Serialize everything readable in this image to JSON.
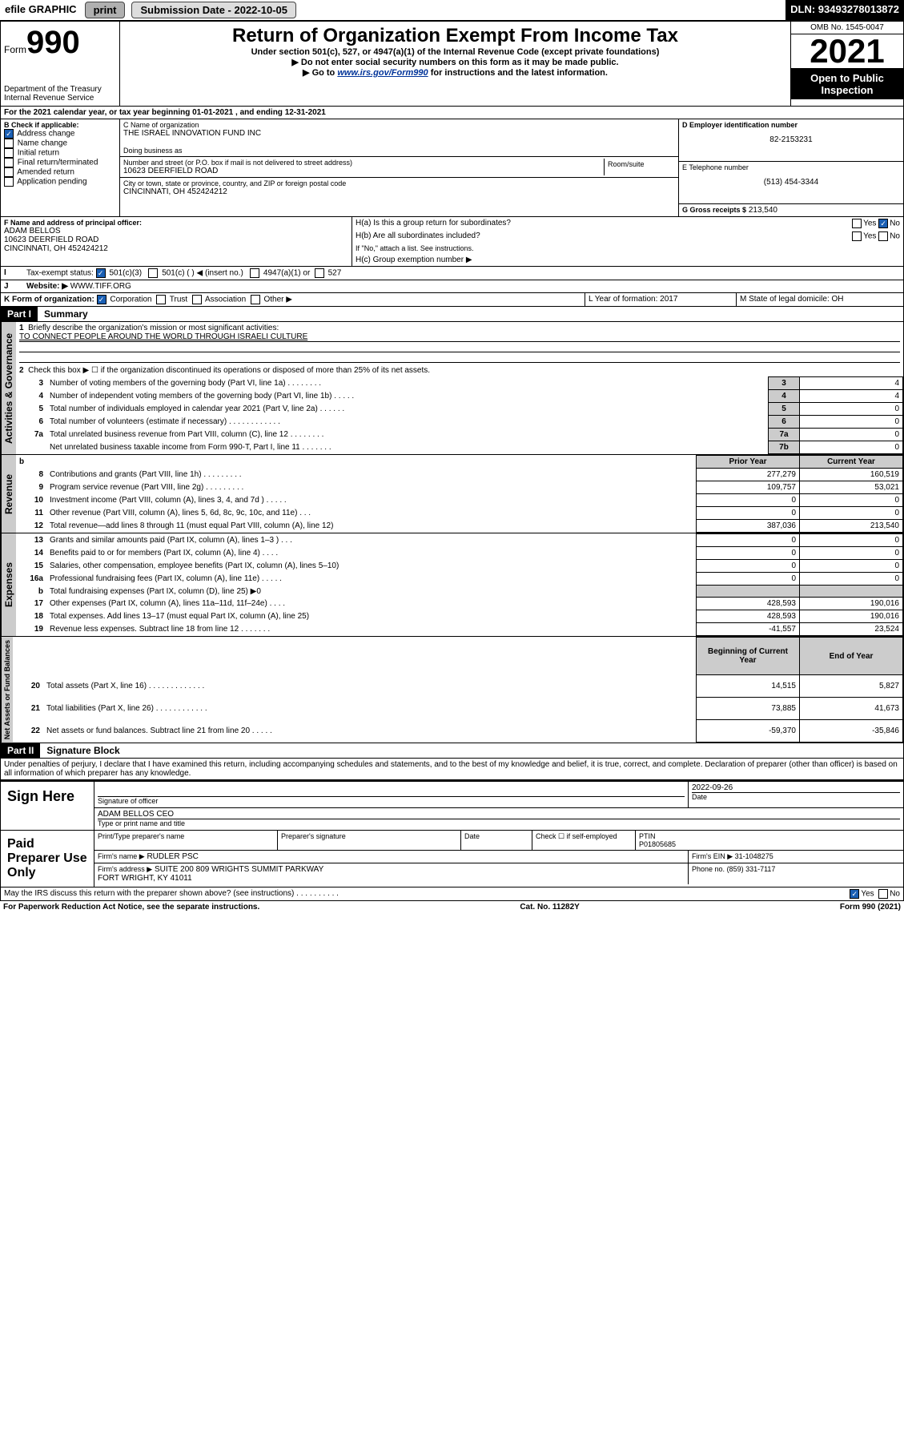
{
  "topbar": {
    "efile": "efile GRAPHIC",
    "print": "print",
    "submission_label": "Submission Date - 2022-10-05",
    "dln_label": "DLN: 93493278013872"
  },
  "header": {
    "form_prefix": "Form",
    "form_no": "990",
    "dept": "Department of the Treasury",
    "irs": "Internal Revenue Service",
    "title": "Return of Organization Exempt From Income Tax",
    "sub1": "Under section 501(c), 527, or 4947(a)(1) of the Internal Revenue Code (except private foundations)",
    "sub2": "▶ Do not enter social security numbers on this form as it may be made public.",
    "sub3_pre": "▶ Go to ",
    "sub3_link": "www.irs.gov/Form990",
    "sub3_post": " for instructions and the latest information.",
    "omb": "OMB No. 1545-0047",
    "year": "2021",
    "open": "Open to Public Inspection"
  },
  "lineA": "For the 2021 calendar year, or tax year beginning 01-01-2021     , and ending 12-31-2021",
  "boxB": {
    "label": "B Check if applicable:",
    "opts": [
      "Address change",
      "Name change",
      "Initial return",
      "Final return/terminated",
      "Amended return",
      "Application pending"
    ],
    "checked": [
      true,
      false,
      false,
      false,
      false,
      false
    ]
  },
  "boxC": {
    "label": "C Name of organization",
    "name": "THE ISRAEL INNOVATION FUND INC",
    "dba_label": "Doing business as",
    "street_label": "Number and street (or P.O. box if mail is not delivered to street address)",
    "room_label": "Room/suite",
    "street": "10623 DEERFIELD ROAD",
    "city_label": "City or town, state or province, country, and ZIP or foreign postal code",
    "city": "CINCINNATI, OH  452424212"
  },
  "boxD": {
    "label": "D Employer identification number",
    "value": "82-2153231"
  },
  "boxE": {
    "label": "E Telephone number",
    "value": "(513) 454-3344"
  },
  "boxG": {
    "label": "G Gross receipts $",
    "value": "213,540"
  },
  "boxF": {
    "label": "F  Name and address of principal officer:",
    "name": "ADAM BELLOS",
    "addr1": "10623 DEERFIELD ROAD",
    "addr2": "CINCINNATI, OH  452424212"
  },
  "boxH": {
    "a_label": "H(a)  Is this a group return for subordinates?",
    "b_label": "H(b)  Are all subordinates included?",
    "b_note": "If \"No,\" attach a list. See instructions.",
    "c_label": "H(c)  Group exemption number ▶",
    "yes": "Yes",
    "no": "No"
  },
  "lineI": {
    "label": "Tax-exempt status:",
    "opt1": "501(c)(3)",
    "opt2": "501(c) (   ) ◀ (insert no.)",
    "opt3": "4947(a)(1) or",
    "opt4": "527"
  },
  "lineJ": {
    "label": "Website: ▶",
    "value": "WWW.TIFF.ORG"
  },
  "lineK": {
    "label": "K Form of organization:",
    "opts": [
      "Corporation",
      "Trust",
      "Association",
      "Other ▶"
    ]
  },
  "lineL": {
    "label": "L Year of formation: 2017"
  },
  "lineM": {
    "label": "M State of legal domicile: OH"
  },
  "part1": {
    "header": "Part I",
    "title": "Summary"
  },
  "summary": {
    "line1_label": "Briefly describe the organization's mission or most significant activities:",
    "line1_value": "TO CONNECT PEOPLE AROUND THE WORLD THROUGH ISRAELI CULTURE",
    "line2": "Check this box ▶ ☐ if the organization discontinued its operations or disposed of more than 25% of its net assets.",
    "rows_a": [
      {
        "n": "3",
        "label": "Number of voting members of the governing body (Part VI, line 1a)   .    .    .    .    .    .    .    .",
        "box": "3",
        "val": "4"
      },
      {
        "n": "4",
        "label": "Number of independent voting members of the governing body (Part VI, line 1b)   .    .    .    .    .",
        "box": "4",
        "val": "4"
      },
      {
        "n": "5",
        "label": "Total number of individuals employed in calendar year 2021 (Part V, line 2a)   .    .    .    .    .    .",
        "box": "5",
        "val": "0"
      },
      {
        "n": "6",
        "label": "Total number of volunteers (estimate if necessary)   .    .    .    .    .    .    .    .    .    .    .    .",
        "box": "6",
        "val": "0"
      },
      {
        "n": "7a",
        "label": "Total unrelated business revenue from Part VIII, column (C), line 12   .    .    .    .    .    .    .    .",
        "box": "7a",
        "val": "0"
      },
      {
        "n": "",
        "label": "Net unrelated business taxable income from Form 990-T, Part I, line 11   .    .    .    .    .    .    .",
        "box": "7b",
        "val": "0"
      }
    ],
    "col_headers": {
      "b": "b",
      "prior": "Prior Year",
      "current": "Current Year"
    },
    "rows_rev": [
      {
        "n": "8",
        "label": "Contributions and grants (Part VIII, line 1h)   .    .    .    .    .    .    .    .    .",
        "py": "277,279",
        "cy": "160,519"
      },
      {
        "n": "9",
        "label": "Program service revenue (Part VIII, line 2g)   .    .    .    .    .    .    .    .    .",
        "py": "109,757",
        "cy": "53,021"
      },
      {
        "n": "10",
        "label": "Investment income (Part VIII, column (A), lines 3, 4, and 7d )   .    .    .    .    .",
        "py": "0",
        "cy": "0"
      },
      {
        "n": "11",
        "label": "Other revenue (Part VIII, column (A), lines 5, 6d, 8c, 9c, 10c, and 11e)   .    .    .",
        "py": "0",
        "cy": "0"
      },
      {
        "n": "12",
        "label": "Total revenue—add lines 8 through 11 (must equal Part VIII, column (A), line 12)",
        "py": "387,036",
        "cy": "213,540"
      }
    ],
    "rows_exp": [
      {
        "n": "13",
        "label": "Grants and similar amounts paid (Part IX, column (A), lines 1–3 )   .    .    .",
        "py": "0",
        "cy": "0"
      },
      {
        "n": "14",
        "label": "Benefits paid to or for members (Part IX, column (A), line 4)   .    .    .    .",
        "py": "0",
        "cy": "0"
      },
      {
        "n": "15",
        "label": "Salaries, other compensation, employee benefits (Part IX, column (A), lines 5–10)",
        "py": "0",
        "cy": "0"
      },
      {
        "n": "16a",
        "label": "Professional fundraising fees (Part IX, column (A), line 11e)   .    .    .    .    .",
        "py": "0",
        "cy": "0"
      },
      {
        "n": "b",
        "label": "Total fundraising expenses (Part IX, column (D), line 25) ▶0",
        "py": "",
        "cy": "",
        "shade": true
      },
      {
        "n": "17",
        "label": "Other expenses (Part IX, column (A), lines 11a–11d, 11f–24e)   .    .    .    .",
        "py": "428,593",
        "cy": "190,016"
      },
      {
        "n": "18",
        "label": "Total expenses. Add lines 13–17 (must equal Part IX, column (A), line 25)",
        "py": "428,593",
        "cy": "190,016"
      },
      {
        "n": "19",
        "label": "Revenue less expenses. Subtract line 18 from line 12   .    .    .    .    .    .    .",
        "py": "-41,557",
        "cy": "23,524"
      }
    ],
    "col_headers2": {
      "boy": "Beginning of Current Year",
      "eoy": "End of Year"
    },
    "rows_na": [
      {
        "n": "20",
        "label": "Total assets (Part X, line 16)   .    .    .    .    .    .    .    .    .    .    .    .    .",
        "py": "14,515",
        "cy": "5,827"
      },
      {
        "n": "21",
        "label": "Total liabilities (Part X, line 26)   .    .    .    .    .    .    .    .    .    .    .    .",
        "py": "73,885",
        "cy": "41,673"
      },
      {
        "n": "22",
        "label": "Net assets or fund balances. Subtract line 21 from line 20   .    .    .    .    .",
        "py": "-59,370",
        "cy": "-35,846"
      }
    ]
  },
  "vlabels": {
    "ag": "Activities & Governance",
    "rev": "Revenue",
    "exp": "Expenses",
    "na": "Net Assets or Fund Balances"
  },
  "part2": {
    "header": "Part II",
    "title": "Signature Block",
    "decl": "Under penalties of perjury, I declare that I have examined this return, including accompanying schedules and statements, and to the best of my knowledge and belief, it is true, correct, and complete. Declaration of preparer (other than officer) is based on all information of which preparer has any knowledge."
  },
  "sign": {
    "label": "Sign Here",
    "sig_officer": "Signature of officer",
    "date": "Date",
    "date_val": "2022-09-26",
    "name": "ADAM BELLOS  CEO",
    "name_label": "Type or print name and title"
  },
  "preparer": {
    "label": "Paid Preparer Use Only",
    "col1": "Print/Type preparer's name",
    "col2": "Preparer's signature",
    "col3": "Date",
    "check_label": "Check ☐ if self-employed",
    "ptin_label": "PTIN",
    "ptin": "P01805685",
    "firm_name_label": "Firm's name    ▶",
    "firm_name": "RUDLER PSC",
    "firm_ein_label": "Firm's EIN ▶",
    "firm_ein": "31-1048275",
    "firm_addr_label": "Firm's address ▶",
    "firm_addr": "SUITE 200 809 WRIGHTS SUMMIT PARKWAY\nFORT WRIGHT, KY  41011",
    "phone_label": "Phone no.",
    "phone": "(859) 331-7117"
  },
  "discuss": {
    "label": "May the IRS discuss this return with the preparer shown above? (see instructions)   .    .    .    .    .    .    .    .    .    .",
    "yes": "Yes",
    "no": "No"
  },
  "footer": {
    "left": "For Paperwork Reduction Act Notice, see the separate instructions.",
    "mid": "Cat. No. 11282Y",
    "right": "Form 990 (2021)"
  }
}
